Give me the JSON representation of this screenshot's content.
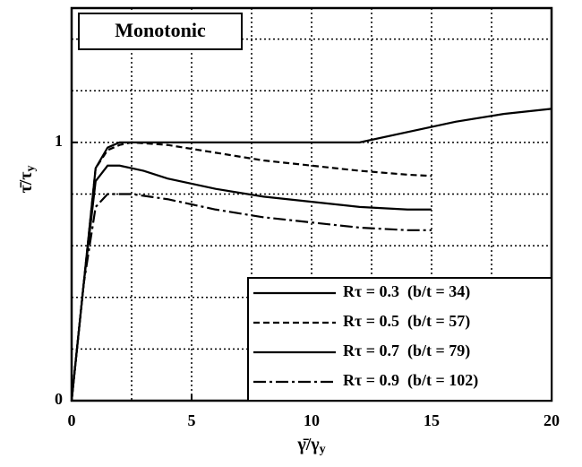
{
  "chart_data": {
    "type": "line",
    "annotation": "Monotonic",
    "x_label": {
      "main": "γ̄/γ",
      "sub": "y"
    },
    "y_label": {
      "main": "τ̄/τ",
      "sub": "y"
    },
    "xlim": [
      0,
      20
    ],
    "ylim": [
      0,
      1.52
    ],
    "xticks": [
      0,
      5,
      10,
      15,
      20
    ],
    "yticks": [
      0,
      1
    ],
    "xgrid": [
      2.5,
      5,
      7.5,
      10,
      12.5,
      15,
      17.5
    ],
    "ygrid": [
      0.2,
      0.4,
      0.6,
      0.8,
      1,
      1.2,
      1.4
    ],
    "grid": true,
    "legend": "lower right",
    "series": [
      {
        "name": "Rτ = 0.3  (b/t = 34)",
        "color": "#000000",
        "dash": "solid",
        "x": [
          0,
          0.5,
          1,
          1.5,
          2,
          3,
          5,
          8,
          10,
          12,
          14,
          16,
          18,
          20
        ],
        "values": [
          0,
          0.45,
          0.9,
          0.98,
          1.0,
          1.0,
          1.0,
          1.0,
          1.0,
          1.0,
          1.04,
          1.08,
          1.11,
          1.13
        ]
      },
      {
        "name": "Rτ = 0.5  (b/t = 57)",
        "color": "#000000",
        "dash": "dashed",
        "x": [
          0,
          0.5,
          1,
          1.5,
          2,
          2.5,
          4,
          6,
          8,
          10,
          12,
          14,
          15
        ],
        "values": [
          0,
          0.45,
          0.9,
          0.97,
          0.99,
          1.0,
          0.99,
          0.96,
          0.93,
          0.91,
          0.89,
          0.875,
          0.87
        ]
      },
      {
        "name": "Rτ = 0.7  (b/t = 79)",
        "color": "#000000",
        "dash": "solid",
        "x": [
          0,
          0.5,
          1,
          1.5,
          2,
          3,
          4,
          6,
          8,
          10,
          12,
          14,
          15
        ],
        "values": [
          0,
          0.45,
          0.85,
          0.91,
          0.91,
          0.89,
          0.86,
          0.82,
          0.79,
          0.77,
          0.75,
          0.74,
          0.74
        ]
      },
      {
        "name": "Rτ = 0.9  (b/t = 102)",
        "color": "#000000",
        "dash": "dashdot",
        "x": [
          0,
          0.5,
          1,
          1.5,
          2,
          2.5,
          4,
          6,
          8,
          10,
          12,
          14,
          15
        ],
        "values": [
          0,
          0.45,
          0.75,
          0.8,
          0.8,
          0.8,
          0.78,
          0.74,
          0.71,
          0.69,
          0.67,
          0.66,
          0.66
        ]
      }
    ]
  }
}
